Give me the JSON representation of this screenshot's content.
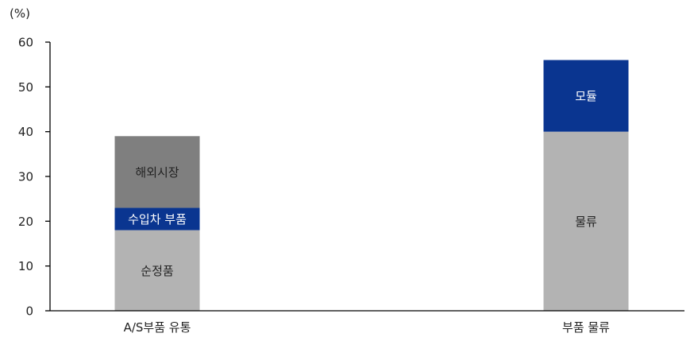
{
  "chart_data": {
    "type": "bar",
    "stacked": true,
    "unit_label": "(%)",
    "ylim": [
      0,
      60
    ],
    "yticks": [
      0,
      10,
      20,
      30,
      40,
      50,
      60
    ],
    "grid": false,
    "categories": [
      "A/S부품 유통",
      "부품 물류"
    ],
    "stacks": [
      {
        "category": "A/S부품 유통",
        "segments": [
          {
            "label": "순정품",
            "value": 18,
            "color": "#b3b3b3",
            "label_color": "#222222"
          },
          {
            "label": "수입차 부품",
            "value": 5,
            "color": "#0a3590",
            "label_color": "#ffffff"
          },
          {
            "label": "해외시장",
            "value": 16,
            "color": "#7f7f7f",
            "label_color": "#222222"
          }
        ]
      },
      {
        "category": "부품 물류",
        "segments": [
          {
            "label": "물류",
            "value": 40,
            "color": "#b3b3b3",
            "label_color": "#222222"
          },
          {
            "label": "모듈",
            "value": 16,
            "color": "#0a3590",
            "label_color": "#ffffff"
          }
        ]
      }
    ]
  }
}
